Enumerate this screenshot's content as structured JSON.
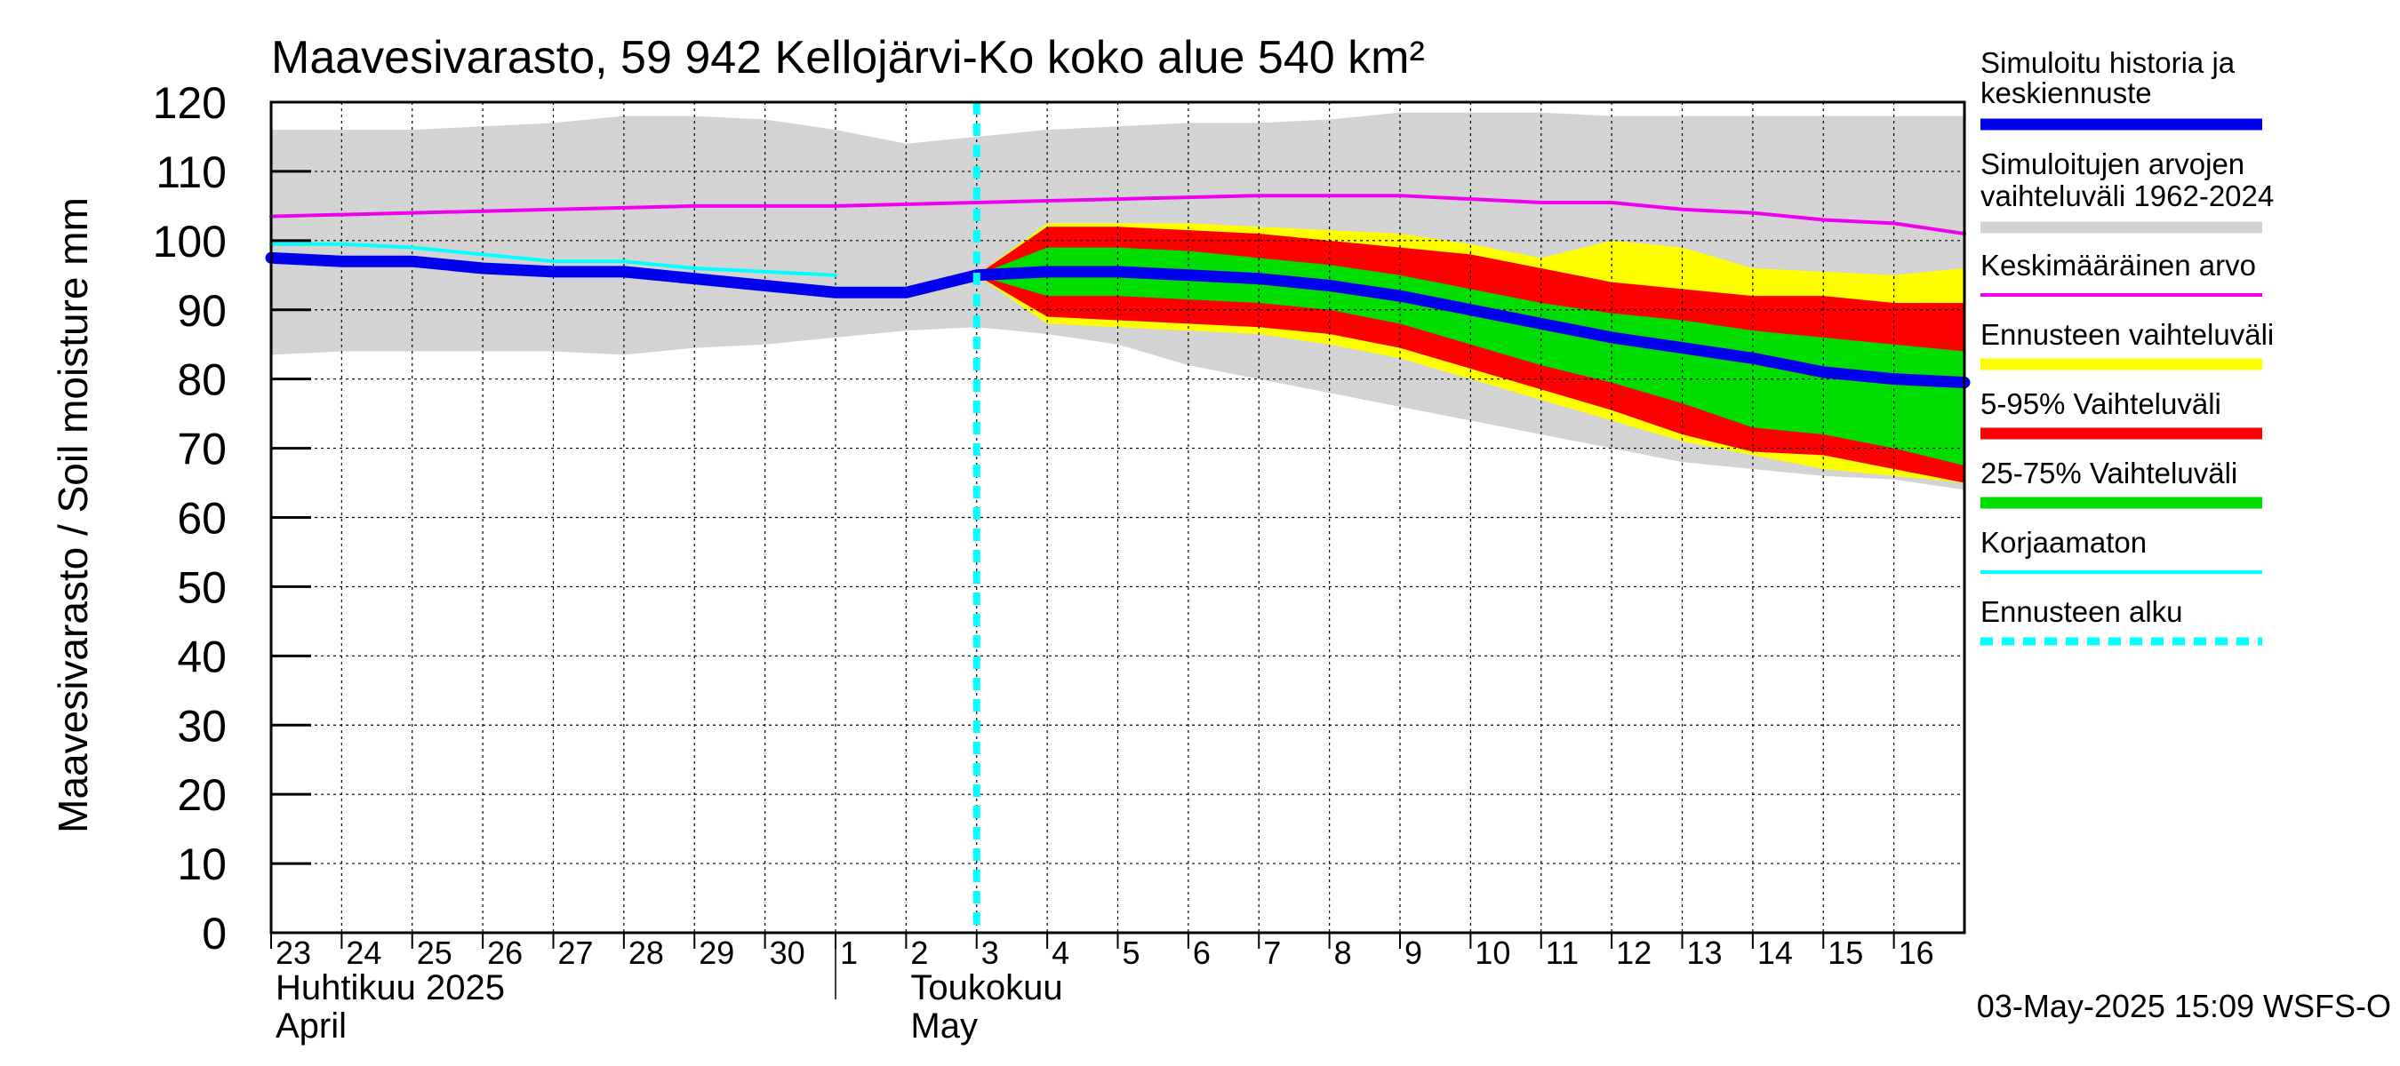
{
  "chart_data": {
    "type": "area",
    "title": "Maavesivarasto, 59 942 Kellojärvi-Ko koko alue 540 km²",
    "ylabel": "Maavesivarasto / Soil moisture   mm",
    "ylim": [
      0,
      120
    ],
    "yticks": [
      0,
      10,
      20,
      30,
      40,
      50,
      60,
      70,
      80,
      90,
      100,
      110,
      120
    ],
    "x_day_index_range": [
      0,
      24
    ],
    "forecast_start_index": 10,
    "day_ticks": [
      {
        "i": 0,
        "label": "23"
      },
      {
        "i": 1,
        "label": "24"
      },
      {
        "i": 2,
        "label": "25"
      },
      {
        "i": 3,
        "label": "26"
      },
      {
        "i": 4,
        "label": "27"
      },
      {
        "i": 5,
        "label": "28"
      },
      {
        "i": 6,
        "label": "29"
      },
      {
        "i": 7,
        "label": "30"
      },
      {
        "i": 8,
        "label": "1"
      },
      {
        "i": 9,
        "label": "2"
      },
      {
        "i": 10,
        "label": "3"
      },
      {
        "i": 11,
        "label": "4"
      },
      {
        "i": 12,
        "label": "5"
      },
      {
        "i": 13,
        "label": "6"
      },
      {
        "i": 14,
        "label": "7"
      },
      {
        "i": 15,
        "label": "8"
      },
      {
        "i": 16,
        "label": "9"
      },
      {
        "i": 17,
        "label": "10"
      },
      {
        "i": 18,
        "label": "11"
      },
      {
        "i": 19,
        "label": "12"
      },
      {
        "i": 20,
        "label": "13"
      },
      {
        "i": 21,
        "label": "14"
      },
      {
        "i": 22,
        "label": "15"
      },
      {
        "i": 23,
        "label": "16"
      }
    ],
    "month_labels": [
      {
        "i": 0,
        "fi": "Huhtikuu  2025",
        "en": "April"
      },
      {
        "i": 9,
        "fi": "Toukokuu",
        "en": "May"
      }
    ],
    "month_boundary_index": 8,
    "series": [
      {
        "name": "Simuloitujen arvojen vaihteluväli 1962-2024",
        "color": "#d3d3d3",
        "kind": "band",
        "x": [
          0,
          1,
          2,
          3,
          4,
          5,
          6,
          7,
          8,
          9,
          10,
          11,
          12,
          13,
          14,
          15,
          16,
          17,
          18,
          19,
          20,
          21,
          22,
          23,
          24
        ],
        "upper": [
          116,
          116,
          116,
          116.5,
          117,
          118,
          118,
          117.5,
          116,
          114,
          115,
          116,
          116.5,
          117,
          117,
          117.5,
          118.5,
          118.5,
          118.5,
          118,
          118,
          118,
          118,
          118,
          118
        ],
        "lower": [
          83.5,
          84,
          84,
          84,
          84,
          83.5,
          84.5,
          85,
          86,
          87,
          87.5,
          86.5,
          85,
          82,
          80,
          78,
          76,
          74,
          72,
          70,
          68,
          67,
          66,
          65.5,
          64
        ]
      },
      {
        "name": "Ennusteen vaihteluväli",
        "color": "#ffff00",
        "kind": "band",
        "x": [
          10,
          11,
          12,
          13,
          14,
          15,
          16,
          17,
          18,
          19,
          20,
          21,
          22,
          23,
          24
        ],
        "upper": [
          95,
          102.5,
          102.5,
          102.5,
          102,
          101.5,
          101,
          99.5,
          97.5,
          100,
          99,
          96,
          95.5,
          95,
          96
        ],
        "lower": [
          95,
          88,
          87.5,
          87,
          86.5,
          85,
          83,
          80,
          77,
          74,
          71,
          69,
          67,
          66,
          65
        ]
      },
      {
        "name": "5-95% Vaihteluväli",
        "color": "#ff0000",
        "kind": "band",
        "x": [
          10,
          11,
          12,
          13,
          14,
          15,
          16,
          17,
          18,
          19,
          20,
          21,
          22,
          23,
          24
        ],
        "upper": [
          95,
          102,
          102,
          101.5,
          101,
          100,
          99,
          98,
          96,
          94,
          93,
          92,
          92,
          91,
          91
        ],
        "lower": [
          95,
          89,
          88.5,
          88,
          87.5,
          86.5,
          84.5,
          81.5,
          78.5,
          75.5,
          72,
          69.5,
          69,
          67,
          65
        ]
      },
      {
        "name": "25-75% Vaihteluväli",
        "color": "#00dd00",
        "kind": "band",
        "x": [
          10,
          11,
          12,
          13,
          14,
          15,
          16,
          17,
          18,
          19,
          20,
          21,
          22,
          23,
          24
        ],
        "upper": [
          95,
          99,
          99,
          98.5,
          97.5,
          96.5,
          95,
          93,
          91,
          89.5,
          88.5,
          87,
          86,
          85,
          84
        ],
        "lower": [
          95,
          92,
          92,
          91.5,
          91,
          90,
          88,
          85,
          82,
          79.5,
          76.5,
          73,
          72,
          70,
          67.5
        ]
      },
      {
        "name": "Keskimääräinen arvo",
        "color": "#ee00ee",
        "kind": "line",
        "width": 4,
        "x": [
          0,
          2,
          4,
          6,
          8,
          10,
          12,
          14,
          16,
          18,
          19,
          20,
          21,
          22,
          23,
          24
        ],
        "y": [
          103.5,
          104,
          104.5,
          105,
          105,
          105.5,
          106,
          106.5,
          106.5,
          105.5,
          105.5,
          104.5,
          104,
          103,
          102.5,
          101
        ]
      },
      {
        "name": "Korjaamaton",
        "color": "#00ffff",
        "kind": "line",
        "width": 4,
        "x": [
          0,
          1,
          2,
          3,
          4,
          5,
          6,
          7,
          8
        ],
        "y": [
          99.5,
          99.5,
          99,
          98,
          97,
          97,
          96,
          95.5,
          95
        ]
      },
      {
        "name": "Simuloitu historia ja keskiennuste",
        "color": "#0000ee",
        "kind": "line",
        "width": 13,
        "x": [
          0,
          1,
          2,
          3,
          4,
          5,
          6,
          7,
          8,
          9,
          10,
          11,
          12,
          13,
          14,
          15,
          16,
          17,
          18,
          19,
          20,
          21,
          22,
          23,
          24
        ],
        "y": [
          97.5,
          97,
          97,
          96,
          95.5,
          95.5,
          94.5,
          93.5,
          92.5,
          92.5,
          95,
          95.5,
          95.5,
          95,
          94.5,
          93.5,
          92,
          90,
          88,
          86,
          84.5,
          83,
          81,
          80,
          79.5
        ]
      }
    ],
    "legend": [
      {
        "label": "Simuloitu historia ja\nkeskiennuste",
        "color": "#0000ee",
        "style": "thick"
      },
      {
        "label": "Simuloitujen arvojen\nvaihteluväli 1962-2024",
        "color": "#d3d3d3",
        "style": "thick"
      },
      {
        "label": "Keskimääräinen arvo",
        "color": "#ee00ee",
        "style": "thin"
      },
      {
        "label": "Ennusteen vaihteluväli",
        "color": "#ffff00",
        "style": "thick"
      },
      {
        "label": "5-95% Vaihteluväli",
        "color": "#ff0000",
        "style": "thick"
      },
      {
        "label": "25-75% Vaihteluväli",
        "color": "#00dd00",
        "style": "thick"
      },
      {
        "label": "Korjaamaton",
        "color": "#00ffff",
        "style": "thin"
      },
      {
        "label": "Ennusteen alku",
        "color": "#00ffff",
        "style": "dashed"
      }
    ],
    "footer": "03-May-2025 15:09 WSFS-O"
  }
}
